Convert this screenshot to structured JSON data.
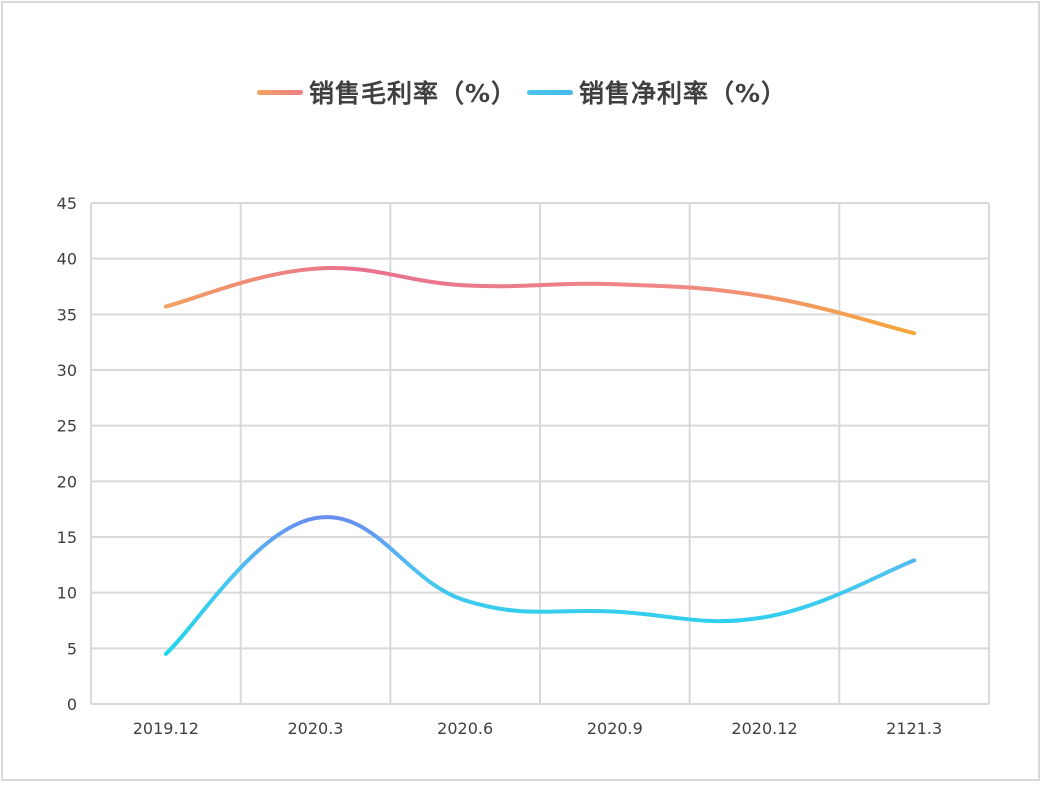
{
  "chart_data": {
    "type": "line",
    "title": "",
    "xlabel": "",
    "ylabel": "",
    "categories": [
      "2019.12",
      "2020.3",
      "2020.6",
      "2020.9",
      "2020.12",
      "2121.3"
    ],
    "ylim": [
      0,
      45
    ],
    "yticks": [
      0,
      5,
      10,
      15,
      20,
      25,
      30,
      35,
      40,
      45
    ],
    "grid": true,
    "smooth": true,
    "legend_position": "top",
    "series": [
      {
        "name": "销售毛利率（%）",
        "values": [
          35.7,
          39.1,
          37.6,
          37.7,
          36.6,
          33.3
        ],
        "gradient": [
          "#f4a261",
          "#e8718d",
          "#f5a93a"
        ]
      },
      {
        "name": "销售净利率（%）",
        "values": [
          4.5,
          16.7,
          9.3,
          8.3,
          7.8,
          12.9
        ],
        "gradient": [
          "#1ad8ec",
          "#6a8cf0",
          "#4dc4ef"
        ]
      }
    ]
  },
  "legend": {
    "items": [
      {
        "label": "销售毛利率（%）",
        "color": "#ef8c78"
      },
      {
        "label": "销售净利率（%）",
        "color": "#4ec3ee"
      }
    ]
  }
}
